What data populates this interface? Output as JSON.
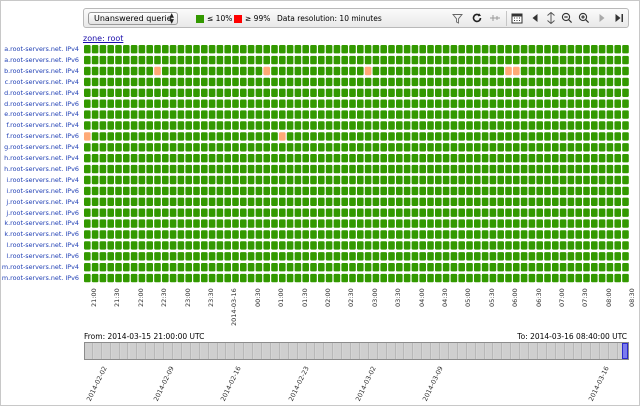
{
  "toolbar": {
    "metric_select": "Unanswered querie",
    "legend_low": "≤ 10%",
    "legend_high": "≥ 99%",
    "resolution": "Data resolution: 10 minutes",
    "colors": {
      "low": "#339900",
      "high": "#ff0000",
      "mid": "#ffaa77"
    }
  },
  "zone_link": "zone: root",
  "rows": [
    "a.root-servers.net. IPv4",
    "a.root-servers.net. IPv6",
    "b.root-servers.net. IPv4",
    "c.root-servers.net. IPv4",
    "d.root-servers.net. IPv4",
    "d.root-servers.net. IPv6",
    "e.root-servers.net. IPv4",
    "f.root-servers.net. IPv4",
    "f.root-servers.net. IPv6",
    "g.root-servers.net. IPv4",
    "h.root-servers.net. IPv4",
    "h.root-servers.net. IPv6",
    "i.root-servers.net. IPv4",
    "i.root-servers.net. IPv6",
    "j.root-servers.net. IPv4",
    "j.root-servers.net. IPv6",
    "k.root-servers.net. IPv4",
    "k.root-servers.net. IPv6",
    "l.root-servers.net. IPv4",
    "l.root-servers.net. IPv6",
    "m.root-servers.net. IPv4",
    "m.root-servers.net. IPv6"
  ],
  "time_ticks": [
    "21:00",
    "21:30",
    "22:00",
    "22:30",
    "23:00",
    "23:30",
    "2014-03-16",
    "00:30",
    "01:00",
    "01:30",
    "02:00",
    "02:30",
    "03:00",
    "03:30",
    "04:00",
    "04:30",
    "05:00",
    "05:30",
    "06:00",
    "06:30",
    "07:00",
    "07:30",
    "08:00",
    "08:30"
  ],
  "chart_data": {
    "type": "heatmap",
    "x_start": "2014-03-15 21:00:00 UTC",
    "x_end": "2014-03-16 08:40:00 UTC",
    "resolution_minutes": 10,
    "columns": 70,
    "default_level": "low",
    "highlights": [
      {
        "row": 2,
        "time": "22:30",
        "level": "mid"
      },
      {
        "row": 2,
        "time": "00:50",
        "level": "mid"
      },
      {
        "row": 2,
        "time": "03:00",
        "level": "mid"
      },
      {
        "row": 2,
        "time": "06:00",
        "level": "mid"
      },
      {
        "row": 2,
        "time": "06:10",
        "level": "mid"
      },
      {
        "row": 8,
        "time": "21:00",
        "level": "mid"
      },
      {
        "row": 8,
        "time": "01:10",
        "level": "mid"
      }
    ]
  },
  "range": {
    "from": "From:  2014-03-15 21:00:00 UTC",
    "to": "To:  2014-03-16 08:40:00 UTC"
  },
  "timeline_dates": [
    "2014-02-02",
    "2014-02-09",
    "2014-02-16",
    "2014-02-23",
    "2014-03-02",
    "2014-03-09",
    "2014-03-16"
  ]
}
